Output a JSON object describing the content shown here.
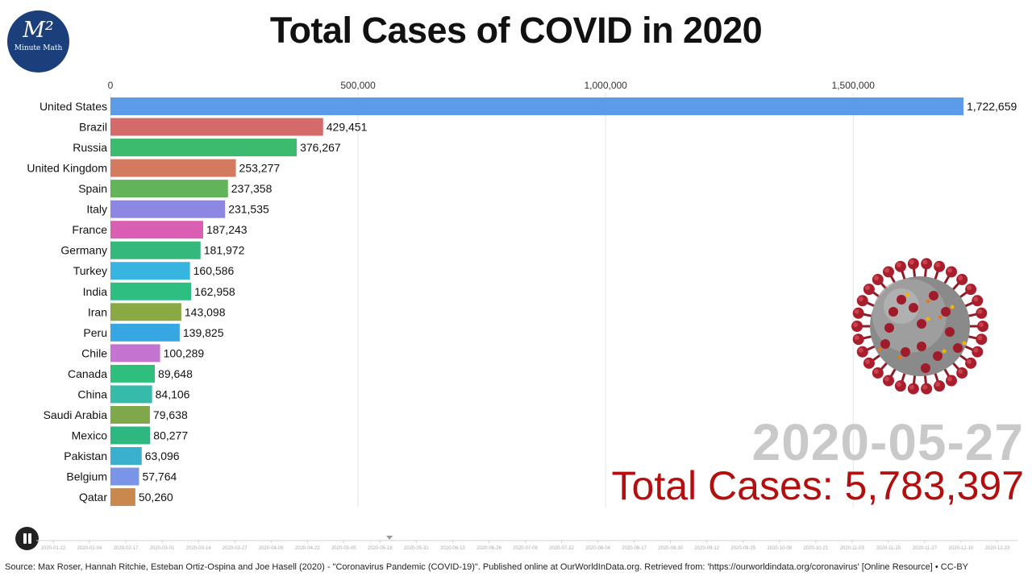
{
  "logo": {
    "main": "M²",
    "sub": "Minute Math"
  },
  "title": "Total Cases of COVID in 2020",
  "chart_data": {
    "type": "bar",
    "orientation": "horizontal",
    "title": "Total Cases of COVID in 2020",
    "xlim": [
      0,
      1722659
    ],
    "x_ticks": [
      0,
      500000,
      1000000,
      1500000
    ],
    "x_tick_labels": [
      "0",
      "500,000",
      "1,000,000",
      "1,500,000"
    ],
    "grid": true,
    "categories": [
      "United States",
      "Brazil",
      "Russia",
      "United Kingdom",
      "Spain",
      "Italy",
      "France",
      "Germany",
      "Turkey",
      "India",
      "Iran",
      "Peru",
      "Chile",
      "Canada",
      "China",
      "Saudi Arabia",
      "Mexico",
      "Pakistan",
      "Belgium",
      "Qatar"
    ],
    "values": [
      1722659,
      429451,
      376267,
      253277,
      237358,
      231535,
      187243,
      181972,
      160586,
      162958,
      143098,
      139825,
      100289,
      89648,
      84106,
      79638,
      80277,
      63096,
      57764,
      50260
    ],
    "value_labels": [
      "1,722,659",
      "429,451",
      "376,267",
      "253,277",
      "237,358",
      "231,535",
      "187,243",
      "181,972",
      "160,586",
      "162,958",
      "143,098",
      "139,825",
      "100,289",
      "89,648",
      "84,106",
      "79,638",
      "80,277",
      "63,096",
      "57,764",
      "50,260"
    ],
    "colors": [
      "#5b9be8",
      "#d46a6a",
      "#3cba6e",
      "#d47a60",
      "#62b35a",
      "#8b87e3",
      "#d85fb1",
      "#34b87b",
      "#38b4e0",
      "#2dbf82",
      "#8aa843",
      "#36a7e2",
      "#c573d0",
      "#2fbf7c",
      "#35bba8",
      "#7fa84b",
      "#2fb782",
      "#3aafce",
      "#7a95e8",
      "#c9884d"
    ]
  },
  "date": "2020-05-27",
  "total_cases": "Total Cases: 5,783,397",
  "timeline": {
    "labels": [
      "2020-01-22",
      "2020-02-04",
      "2020-02-17",
      "2020-03-01",
      "2020-03-14",
      "2020-03-27",
      "2020-04-09",
      "2020-04-22",
      "2020-05-05",
      "2020-05-18",
      "2020-05-31",
      "2020-06-13",
      "2020-06-26",
      "2020-07-09",
      "2020-07-22",
      "2020-08-04",
      "2020-08-17",
      "2020-08-30",
      "2020-09-12",
      "2020-09-25",
      "2020-10-08",
      "2020-10-21",
      "2020-11-03",
      "2020-11-15",
      "2020-11-27",
      "2020-12-10",
      "2020-12-23"
    ],
    "progress": 0.36
  },
  "source": "Source: Max Roser, Hannah Ritchie, Esteban Ortiz-Ospina and Joe Hasell (2020) - \"Coronavirus Pandemic (COVID-19)\". Published online at OurWorldInData.org. Retrieved from: 'https://ourworldindata.org/coronavirus' [Online Resource] • CC-BY",
  "icons": {
    "virus": "coronavirus-illustration-icon",
    "pause": "pause-icon"
  }
}
